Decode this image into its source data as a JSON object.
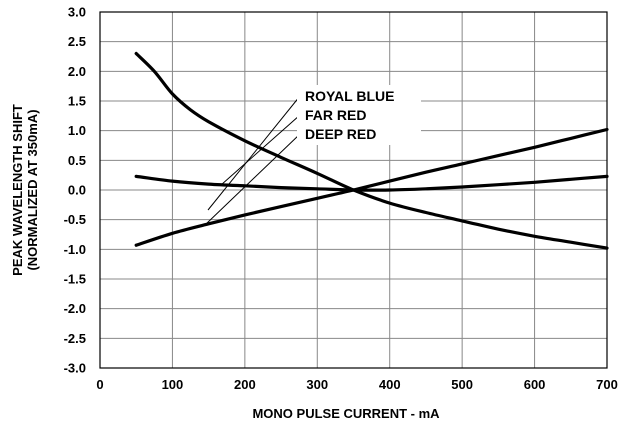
{
  "chart_data": {
    "type": "line",
    "title": "",
    "xlabel": "MONO PULSE CURRENT - mA",
    "ylabel": [
      "PEAK WAVELENGTH SHIFT",
      "(NORMALIZED AT 350mA)"
    ],
    "xlim": [
      0,
      700
    ],
    "ylim": [
      -3.0,
      3.0
    ],
    "x_ticks": [
      0,
      100,
      200,
      300,
      400,
      500,
      600,
      700
    ],
    "y_ticks": [
      3.0,
      2.5,
      2.0,
      1.5,
      1.0,
      0.5,
      0.0,
      -0.5,
      -1.0,
      -1.5,
      -2.0,
      -2.5,
      -3.0
    ],
    "x_tick_labels": [
      "0",
      "100",
      "200",
      "300",
      "400",
      "500",
      "600",
      "700"
    ],
    "y_tick_labels": [
      "3.0",
      "2.5",
      "2.0",
      "1.5",
      "1.0",
      "0.5",
      "0.0",
      "-0.5",
      "-1.0",
      "-1.5",
      "-2.0",
      "-2.5",
      "-3.0"
    ],
    "grid": true,
    "series": [
      {
        "name": "ROYAL BLUE",
        "x": [
          50,
          75,
          100,
          125,
          150,
          200,
          250,
          300,
          350,
          400,
          450,
          500,
          550,
          600,
          650,
          700
        ],
        "y": [
          2.3,
          2.0,
          1.62,
          1.35,
          1.15,
          0.83,
          0.55,
          0.28,
          0.0,
          -0.22,
          -0.38,
          -0.52,
          -0.66,
          -0.78,
          -0.88,
          -0.98
        ]
      },
      {
        "name": "FAR RED",
        "x": [
          50,
          100,
          150,
          200,
          250,
          300,
          350,
          400,
          450,
          500,
          550,
          600,
          650,
          700
        ],
        "y": [
          0.23,
          0.15,
          0.1,
          0.07,
          0.04,
          0.02,
          0.0,
          0.0,
          0.02,
          0.05,
          0.09,
          0.13,
          0.18,
          0.23
        ]
      },
      {
        "name": "DEEP RED",
        "x": [
          50,
          100,
          150,
          200,
          250,
          300,
          350,
          400,
          450,
          500,
          550,
          600,
          650,
          700
        ],
        "y": [
          -0.93,
          -0.73,
          -0.57,
          -0.42,
          -0.28,
          -0.14,
          0.0,
          0.15,
          0.3,
          0.44,
          0.58,
          0.72,
          0.87,
          1.02
        ]
      }
    ]
  }
}
